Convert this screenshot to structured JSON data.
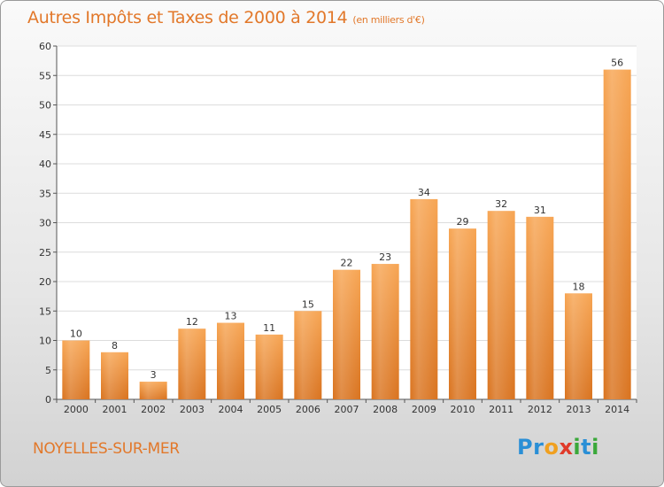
{
  "title": "Autres Impôts et Taxes de 2000 à 2014",
  "unit_note": "(en milliers d'€)",
  "commune": "NOYELLES-SUR-MER",
  "logo": {
    "text": "Proxiti",
    "letters": [
      "P",
      "r",
      "o",
      "x",
      "i",
      "t",
      "i"
    ],
    "colors": [
      "#2a8fd6",
      "#2a8fd6",
      "#f0a020",
      "#e03a2a",
      "#3aa83a",
      "#2a8fd6",
      "#3aa83a"
    ]
  },
  "colors": {
    "accent": "#e2782a",
    "bar_light": "#f7a553",
    "bar_dark": "#d9731f"
  },
  "chart_data": {
    "type": "bar",
    "categories": [
      "2000",
      "2001",
      "2002",
      "2003",
      "2004",
      "2005",
      "2006",
      "2007",
      "2008",
      "2009",
      "2010",
      "2011",
      "2012",
      "2013",
      "2014"
    ],
    "values": [
      10,
      8,
      3,
      12,
      13,
      11,
      15,
      22,
      23,
      34,
      29,
      32,
      31,
      18,
      56
    ],
    "ylim": [
      0,
      60
    ],
    "yticks": [
      0,
      5,
      10,
      15,
      20,
      25,
      30,
      35,
      40,
      45,
      50,
      55,
      60
    ],
    "grid": true,
    "data_labels": true
  }
}
